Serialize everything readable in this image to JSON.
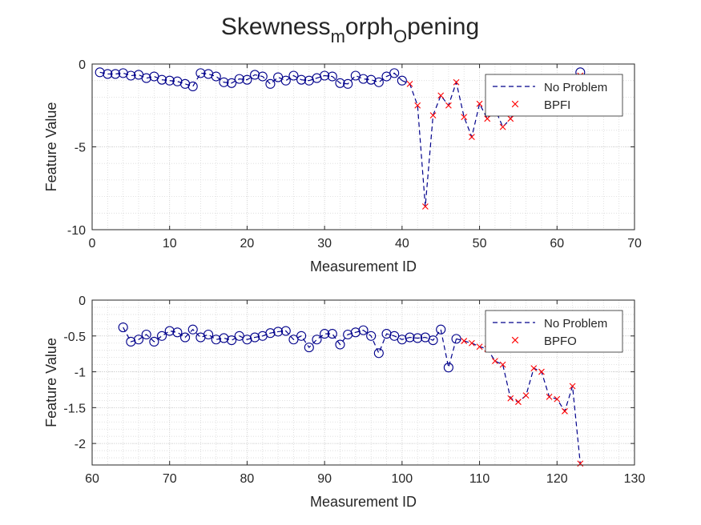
{
  "figure": {
    "title_main": "Skewness",
    "title_sub1": "m",
    "title_mid": "orph",
    "title_sub2": "O",
    "title_end": "pening"
  },
  "colors": {
    "no_problem": "#00008B",
    "fault": "#FF0000",
    "axis": "#262626",
    "grid": "#d9d9d9"
  },
  "chart_data": [
    {
      "type": "line",
      "xlabel": "Measurement ID",
      "ylabel": "Feature Value",
      "xlim": [
        0,
        70
      ],
      "ylim": [
        -10,
        0
      ],
      "xticks": [
        0,
        10,
        20,
        30,
        40,
        50,
        60,
        70
      ],
      "yticks": [
        -10,
        -5,
        0
      ],
      "grid": true,
      "minor_grid": true,
      "legend_position": "top-right",
      "legend": [
        "No Problem",
        "BPFI"
      ],
      "series": [
        {
          "name": "No Problem",
          "style": "dashed-line-circle",
          "x": [
            1,
            2,
            3,
            4,
            5,
            6,
            7,
            8,
            9,
            10,
            11,
            12,
            13,
            14,
            15,
            16,
            17,
            18,
            19,
            20,
            21,
            22,
            23,
            24,
            25,
            26,
            27,
            28,
            29,
            30,
            31,
            32,
            33,
            34,
            35,
            36,
            37,
            38,
            39,
            40
          ],
          "y": [
            -0.5,
            -0.6,
            -0.6,
            -0.55,
            -0.7,
            -0.65,
            -0.85,
            -0.75,
            -0.95,
            -1.0,
            -1.05,
            -1.2,
            -1.35,
            -0.55,
            -0.6,
            -0.75,
            -1.1,
            -1.15,
            -0.9,
            -0.95,
            -0.65,
            -0.75,
            -1.2,
            -0.8,
            -1.0,
            -0.7,
            -0.95,
            -1.0,
            -0.85,
            -0.7,
            -0.75,
            -1.15,
            -1.2,
            -0.7,
            -0.9,
            -0.95,
            -1.1,
            -0.75,
            -0.55,
            -1.0
          ]
        },
        {
          "name": "BPFI",
          "style": "dashed-line-x",
          "x": [
            41,
            42,
            43,
            44,
            45,
            46,
            47,
            48,
            49,
            50,
            51,
            52,
            53,
            54,
            55,
            56,
            57,
            58,
            59,
            60,
            61,
            62,
            63
          ],
          "y": [
            -1.2,
            -2.5,
            -8.6,
            -3.1,
            -1.9,
            -2.5,
            -1.1,
            -3.2,
            -4.4,
            -2.4,
            -3.3,
            -2.7,
            -3.8,
            -3.3,
            -2.6,
            -2.0,
            -1.5,
            -1.8,
            -1.6,
            -1.4,
            -1.2,
            -1.0,
            -0.7
          ]
        },
        {
          "name": "No Problem",
          "style": "circle-only",
          "x": [
            63
          ],
          "y": [
            -0.5
          ]
        }
      ]
    },
    {
      "type": "line",
      "xlabel": "Measurement ID",
      "ylabel": "Feature Value",
      "xlim": [
        60,
        130
      ],
      "ylim": [
        -2.3,
        0
      ],
      "xticks": [
        60,
        70,
        80,
        90,
        100,
        110,
        120,
        130
      ],
      "yticks": [
        -2,
        -1.5,
        -1,
        -0.5,
        0
      ],
      "grid": true,
      "minor_grid": true,
      "legend_position": "top-right",
      "legend": [
        "No Problem",
        "BPFO"
      ],
      "series": [
        {
          "name": "No Problem",
          "style": "dashed-line-circle",
          "x": [
            64,
            65,
            66,
            67,
            68,
            69,
            70,
            71,
            72,
            73,
            74,
            75,
            76,
            77,
            78,
            79,
            80,
            81,
            82,
            83,
            84,
            85,
            86,
            87,
            88,
            89,
            90,
            91,
            92,
            93,
            94,
            95,
            96,
            97,
            98,
            99,
            100,
            101,
            102,
            103,
            104,
            105,
            106,
            107
          ],
          "y": [
            -0.38,
            -0.58,
            -0.55,
            -0.48,
            -0.58,
            -0.5,
            -0.43,
            -0.45,
            -0.52,
            -0.41,
            -0.52,
            -0.48,
            -0.55,
            -0.53,
            -0.56,
            -0.5,
            -0.55,
            -0.52,
            -0.5,
            -0.46,
            -0.44,
            -0.43,
            -0.55,
            -0.5,
            -0.66,
            -0.55,
            -0.47,
            -0.47,
            -0.62,
            -0.48,
            -0.45,
            -0.42,
            -0.5,
            -0.74,
            -0.47,
            -0.5,
            -0.55,
            -0.52,
            -0.53,
            -0.52,
            -0.56,
            -0.41,
            -0.94,
            -0.54
          ]
        },
        {
          "name": "BPFO",
          "style": "dashed-line-x",
          "x": [
            108,
            109,
            110,
            111,
            112,
            113,
            114,
            115,
            116,
            117,
            118,
            119,
            120,
            121,
            122,
            123
          ],
          "y": [
            -0.57,
            -0.6,
            -0.65,
            -0.68,
            -0.85,
            -0.9,
            -1.37,
            -1.42,
            -1.33,
            -0.95,
            -1.0,
            -1.35,
            -1.38,
            -1.55,
            -1.2,
            -2.28
          ]
        }
      ]
    }
  ]
}
